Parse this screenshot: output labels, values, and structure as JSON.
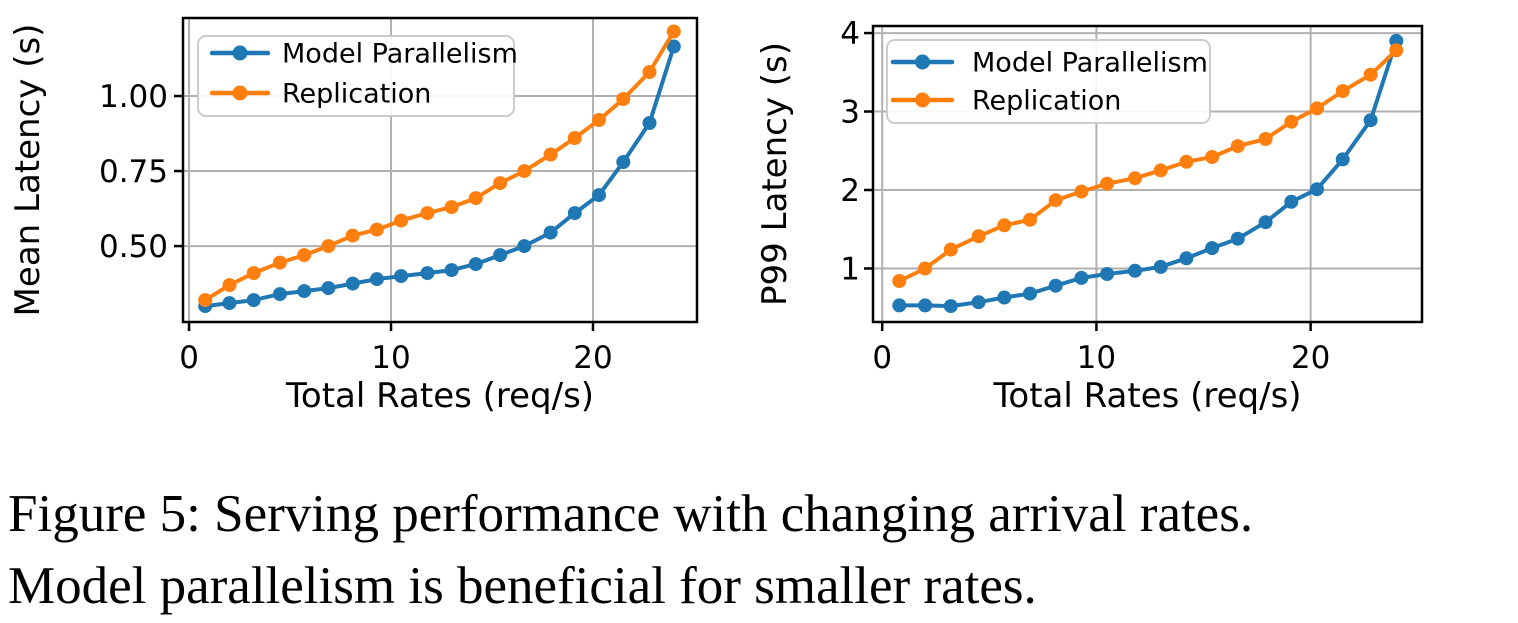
{
  "caption": {
    "line1": "Figure 5: Serving performance with changing arrival rates.",
    "line2": "Model parallelism is beneficial for smaller rates."
  },
  "colors": {
    "model_parallelism": "#1f77b4",
    "replication": "#ff7f0e",
    "grid": "#b0b0b0",
    "frame": "#000000",
    "text": "#000000",
    "legend_border": "#cccccc"
  },
  "chart_data": [
    {
      "type": "line",
      "title": "",
      "xlabel": "Total Rates (req/s)",
      "ylabel": "Mean Latency (s)",
      "x": [
        0.8,
        2.0,
        3.2,
        4.5,
        5.7,
        6.9,
        8.1,
        9.3,
        10.5,
        11.8,
        13.0,
        14.2,
        15.4,
        16.6,
        17.9,
        19.1,
        20.3,
        21.5,
        22.8,
        24.0
      ],
      "series": [
        {
          "name": "Model Parallelism",
          "color": "#1f77b4",
          "values": [
            0.3,
            0.31,
            0.32,
            0.34,
            0.35,
            0.36,
            0.375,
            0.39,
            0.4,
            0.41,
            0.42,
            0.44,
            0.47,
            0.5,
            0.545,
            0.61,
            0.67,
            0.78,
            0.91,
            1.165
          ]
        },
        {
          "name": "Replication",
          "color": "#ff7f0e",
          "values": [
            0.32,
            0.37,
            0.41,
            0.445,
            0.47,
            0.5,
            0.535,
            0.555,
            0.585,
            0.61,
            0.63,
            0.66,
            0.71,
            0.75,
            0.805,
            0.86,
            0.92,
            0.99,
            1.08,
            1.215
          ]
        }
      ],
      "xlim": [
        -0.3,
        25.15
      ],
      "ylim": [
        0.247,
        1.26
      ],
      "xticks": {
        "values": [
          0,
          10,
          20
        ],
        "labels": [
          "0",
          "10",
          "20"
        ]
      },
      "yticks": {
        "values": [
          0.5,
          0.75,
          1.0
        ],
        "labels": [
          "0.50",
          "0.75",
          "1.00"
        ]
      },
      "grid": true,
      "legend_position": "upper-left",
      "marker": "circle"
    },
    {
      "type": "line",
      "title": "",
      "xlabel": "Total Rates (req/s)",
      "ylabel": "P99 Latency (s)",
      "x": [
        0.8,
        2.0,
        3.2,
        4.5,
        5.7,
        6.9,
        8.1,
        9.3,
        10.5,
        11.8,
        13.0,
        14.2,
        15.4,
        16.6,
        17.9,
        19.1,
        20.3,
        21.5,
        22.8,
        24.0
      ],
      "series": [
        {
          "name": "Model Parallelism",
          "color": "#1f77b4",
          "values": [
            0.53,
            0.53,
            0.52,
            0.57,
            0.63,
            0.68,
            0.78,
            0.88,
            0.93,
            0.97,
            1.02,
            1.13,
            1.26,
            1.38,
            1.59,
            1.85,
            2.01,
            2.39,
            2.89,
            3.9
          ]
        },
        {
          "name": "Replication",
          "color": "#ff7f0e",
          "values": [
            0.84,
            1.0,
            1.24,
            1.41,
            1.55,
            1.62,
            1.87,
            1.98,
            2.08,
            2.15,
            2.25,
            2.36,
            2.42,
            2.56,
            2.65,
            2.87,
            3.04,
            3.26,
            3.47,
            3.78
          ]
        }
      ],
      "xlim": [
        -0.43,
        25.2
      ],
      "ylim": [
        0.318,
        4.09
      ],
      "xticks": {
        "values": [
          0,
          10,
          20
        ],
        "labels": [
          "0",
          "10",
          "20"
        ]
      },
      "yticks": {
        "values": [
          1,
          2,
          3,
          4
        ],
        "labels": [
          "1",
          "2",
          "3",
          "4"
        ]
      },
      "grid": true,
      "legend_position": "upper-left",
      "marker": "circle"
    }
  ]
}
